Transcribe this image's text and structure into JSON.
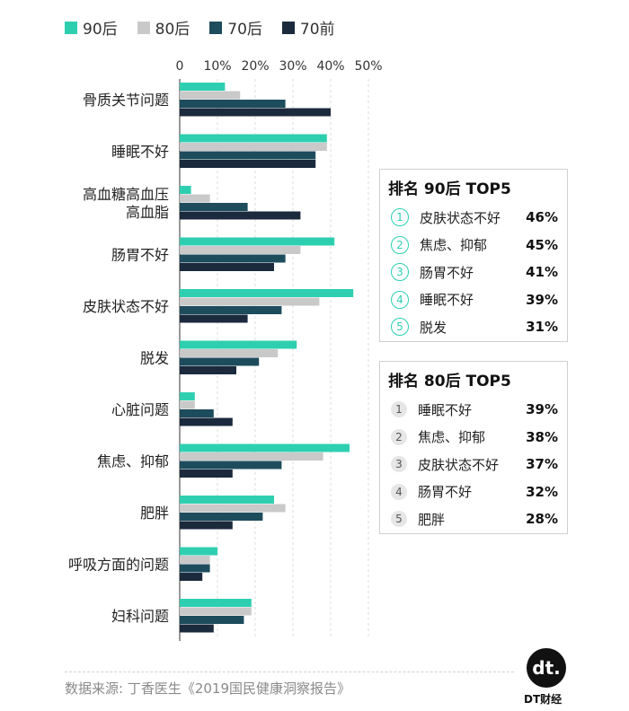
{
  "legend": [
    {
      "name": "90后",
      "color": "#2ecfb0"
    },
    {
      "name": "80后",
      "color": "#c9c9c9"
    },
    {
      "name": "70后",
      "color": "#1d4c5c"
    },
    {
      "name": "70前",
      "color": "#1b2a3d"
    }
  ],
  "chart_data": {
    "type": "bar",
    "orientation": "horizontal",
    "title": "",
    "xlim": [
      0,
      50
    ],
    "xticks": [
      "0",
      "10%",
      "20%",
      "30%",
      "40%",
      "50%"
    ],
    "categories": [
      "骨质关节问题",
      "睡眠不好",
      "高血糖高血压高血脂",
      "肠胃不好",
      "皮肤状态不好",
      "脱发",
      "心脏问题",
      "焦虑、抑郁",
      "肥胖",
      "呼吸方面的问题",
      "妇科问题"
    ],
    "category_lines": [
      [
        "骨质关节问题"
      ],
      [
        "睡眠不好"
      ],
      [
        "高血糖高血压",
        "高血脂"
      ],
      [
        "肠胃不好"
      ],
      [
        "皮肤状态不好"
      ],
      [
        "脱发"
      ],
      [
        "心脏问题"
      ],
      [
        "焦虑、抑郁"
      ],
      [
        "肥胖"
      ],
      [
        "呼吸方面的问题"
      ],
      [
        "妇科问题"
      ]
    ],
    "series": [
      {
        "name": "90后",
        "color": "#2ecfb0",
        "values": [
          12,
          39,
          3,
          41,
          46,
          31,
          4,
          45,
          25,
          10,
          19
        ]
      },
      {
        "name": "80后",
        "color": "#c9c9c9",
        "values": [
          16,
          39,
          8,
          32,
          37,
          26,
          4,
          38,
          28,
          8,
          19
        ]
      },
      {
        "name": "70后",
        "color": "#1d4c5c",
        "values": [
          28,
          36,
          18,
          28,
          27,
          21,
          9,
          27,
          22,
          8,
          17
        ]
      },
      {
        "name": "70前",
        "color": "#1b2a3d",
        "values": [
          40,
          36,
          32,
          25,
          18,
          15,
          14,
          14,
          14,
          6,
          9
        ]
      }
    ]
  },
  "rank90": {
    "title": "排名 90后 TOP5",
    "accent": "#2ecfb0",
    "items": [
      {
        "num": "1",
        "label": "皮肤状态不好",
        "value": "46%"
      },
      {
        "num": "2",
        "label": "焦虑、抑郁",
        "value": "45%"
      },
      {
        "num": "3",
        "label": "肠胃不好",
        "value": "41%"
      },
      {
        "num": "4",
        "label": "睡眠不好",
        "value": "39%"
      },
      {
        "num": "5",
        "label": "脱发",
        "value": "31%"
      }
    ]
  },
  "rank80": {
    "title": "排名 80后 TOP5",
    "accent": "#d6d6d6",
    "items": [
      {
        "num": "1",
        "label": "睡眠不好",
        "value": "39%"
      },
      {
        "num": "2",
        "label": "焦虑、抑郁",
        "value": "38%"
      },
      {
        "num": "3",
        "label": "皮肤状态不好",
        "value": "37%"
      },
      {
        "num": "4",
        "label": "肠胃不好",
        "value": "32%"
      },
      {
        "num": "5",
        "label": "肥胖",
        "value": "28%"
      }
    ]
  },
  "footer": {
    "source": "数据来源: 丁香医生《2019国民健康洞察报告》"
  },
  "logo": {
    "mark": "dt.",
    "text": "DT财经"
  }
}
